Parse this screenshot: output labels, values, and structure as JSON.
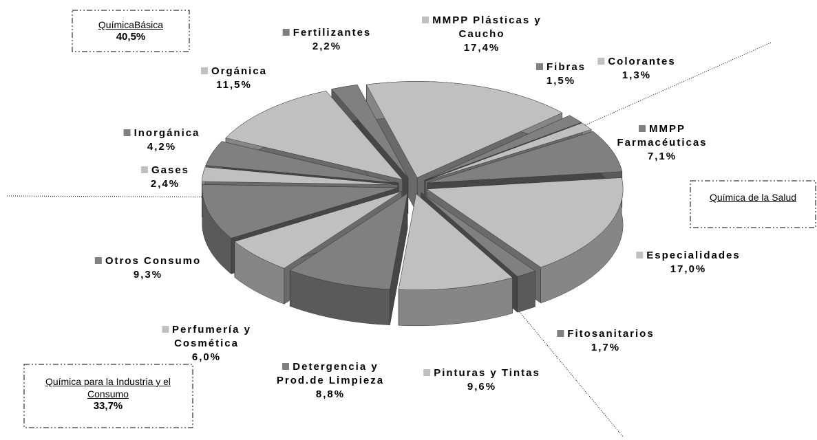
{
  "chart_data": {
    "type": "pie",
    "categories": [
      "MMPP Plásticas y Caucho",
      "Fibras",
      "Colorantes",
      "MMPP Farmacéuticas",
      "Especialidades",
      "Fitosanitarios",
      "Pinturas y Tintas",
      "Detergencia y Prod.de Limpieza",
      "Perfumería y Cosmética",
      "Otros Consumo",
      "Gases",
      "Inorgánica",
      "Orgánica",
      "Fertilizantes"
    ],
    "values": [
      17.4,
      1.5,
      1.3,
      7.1,
      17.0,
      1.7,
      9.6,
      8.8,
      6.0,
      9.3,
      2.4,
      4.2,
      11.5,
      2.2
    ],
    "value_labels": [
      "17,4%",
      "1,5%",
      "1,3%",
      "7,1%",
      "17,0%",
      "1,7%",
      "9,6%",
      "8,8%",
      "6,0%",
      "9,3%",
      "2,4%",
      "4,2%",
      "11,5%",
      "2,2%"
    ],
    "colors": [
      "#c0c0c0",
      "#808080",
      "#c0c0c0",
      "#808080",
      "#c0c0c0",
      "#808080",
      "#c0c0c0",
      "#808080",
      "#c0c0c0",
      "#808080",
      "#c0c0c0",
      "#808080",
      "#c0c0c0",
      "#808080"
    ],
    "groups": [
      {
        "name": "QuímicaBásica",
        "value": "40,5%"
      },
      {
        "name": "Química de la Salud"
      },
      {
        "name": "Química para la Industria y el Consumo",
        "value": "33,7%"
      }
    ]
  }
}
